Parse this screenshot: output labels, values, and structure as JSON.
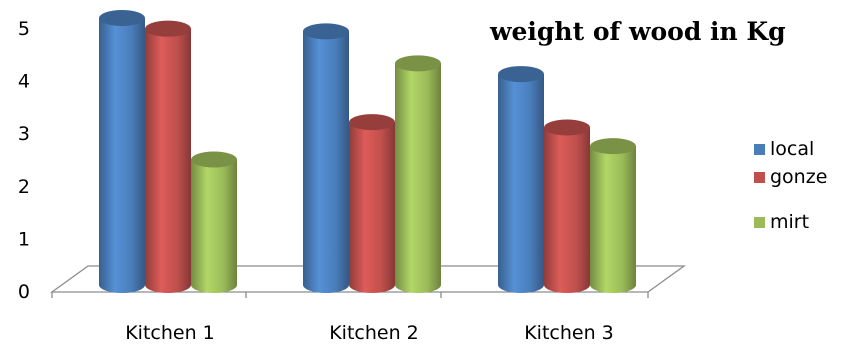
{
  "chart_data": {
    "type": "bar",
    "title": "weight of wood in Kg",
    "xlabel": "",
    "ylabel": "",
    "categories": [
      "Kitchen 1",
      "Kitchen 2",
      "Kitchen 3"
    ],
    "series": [
      {
        "name": "local",
        "values": [
          5.0,
          4.75,
          3.95
        ],
        "color": "#4a7ebb"
      },
      {
        "name": "gonze",
        "values": [
          4.8,
          3.05,
          2.95
        ],
        "color": "#c0504d"
      },
      {
        "name": "mirt",
        "values": [
          2.35,
          4.15,
          2.6
        ],
        "color": "#9bbb59"
      }
    ],
    "ylim": [
      0,
      5
    ],
    "yticks": [
      "0",
      "1",
      "2",
      "3",
      "4",
      "5"
    ],
    "grid": false,
    "legend_position": "right",
    "style": "3d-cylinder"
  }
}
